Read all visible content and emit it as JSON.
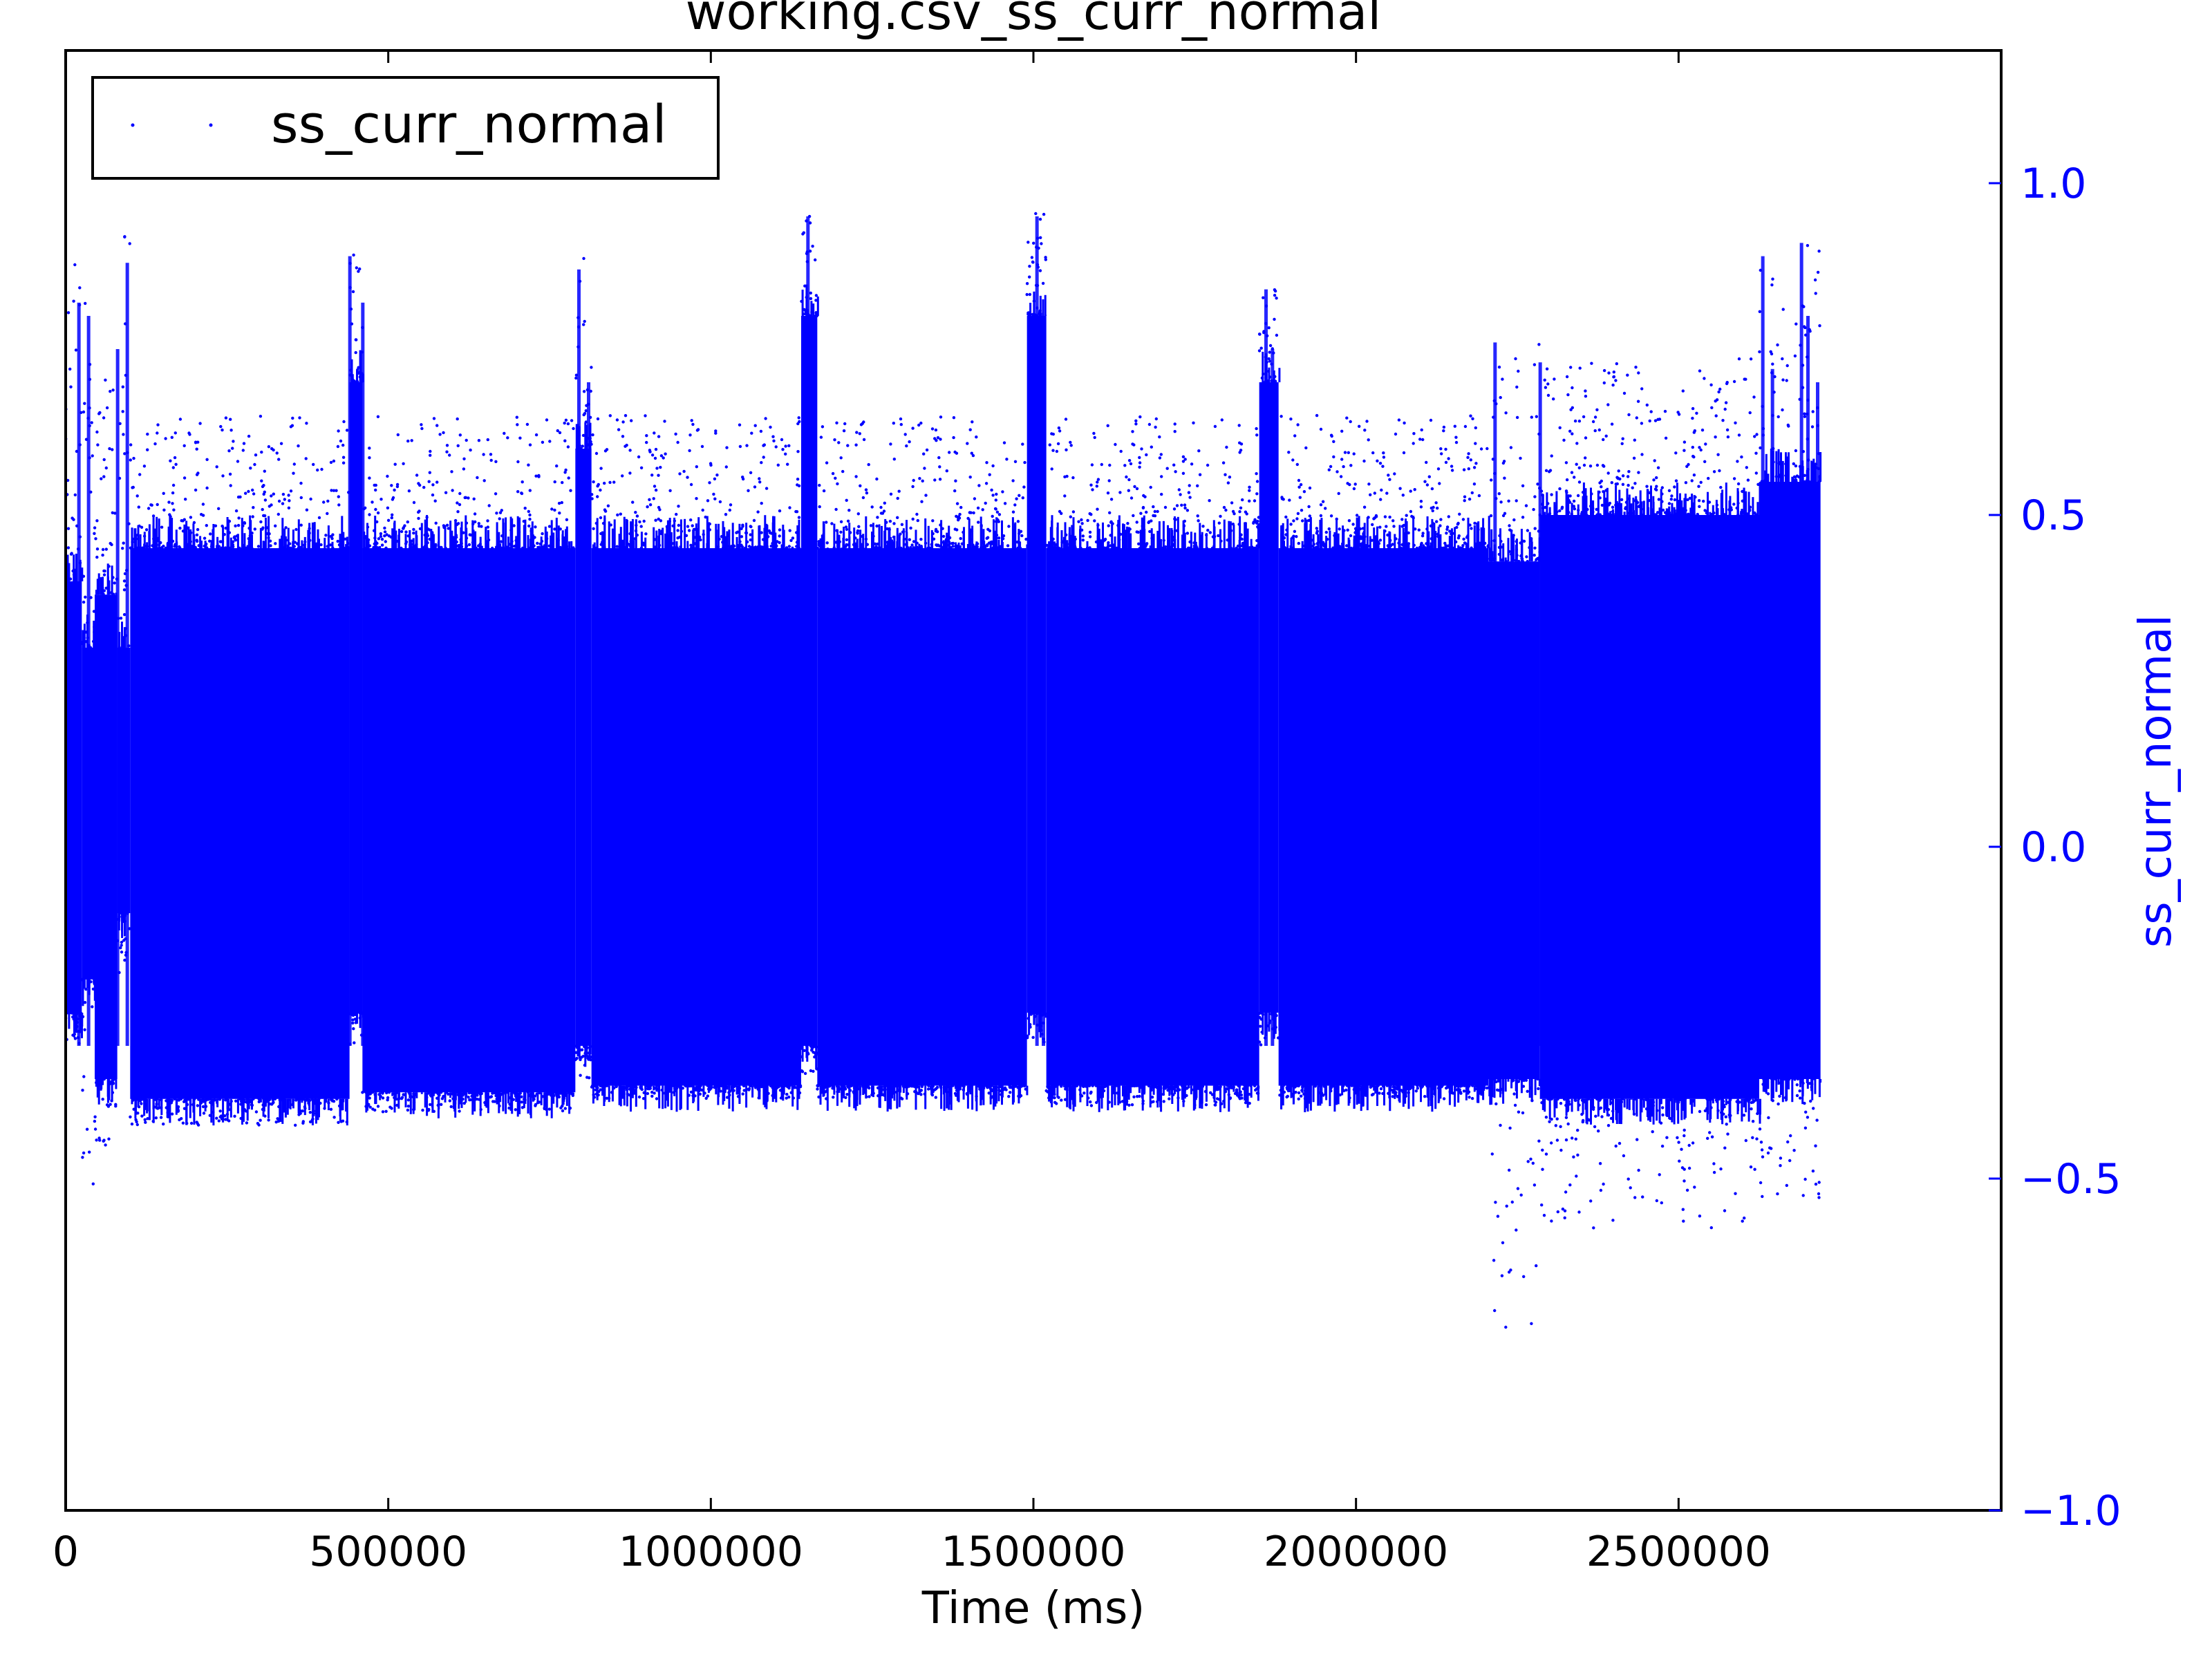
{
  "chart_data": {
    "type": "scatter",
    "title": "working.csv_ss_curr_normal",
    "xlabel": "Time (ms)",
    "ylabel": "ss_curr_normal",
    "xlim": [
      0,
      3000000
    ],
    "ylim": [
      -1.0,
      1.2
    ],
    "x_ticks": [
      0,
      500000,
      1000000,
      1500000,
      2000000,
      2500000
    ],
    "x_tick_labels": [
      "0",
      "500000",
      "1000000",
      "1500000",
      "2000000",
      "2500000"
    ],
    "y_ticks": [
      -1.0,
      -0.5,
      0.0,
      0.5,
      1.0
    ],
    "y_tick_labels": [
      "−1.0",
      "−0.5",
      "0.0",
      "0.5",
      "1.0"
    ],
    "y_axis_side": "right",
    "grid": false,
    "legend": {
      "placement": "upper-left",
      "entries": [
        "ss_curr_normal"
      ]
    },
    "colors": {
      "series": "#0000ff",
      "axis_label": "#0000ff",
      "frame": "#000000"
    },
    "series": [
      {
        "name": "ss_curr_normal",
        "marker": "small dots",
        "segments": [
          {
            "x": [
              0,
              25000
            ],
            "dense_range": [
              -0.25,
              0.4
            ],
            "extreme_range": [
              -0.3,
              0.88
            ]
          },
          {
            "x": [
              25000,
              45000
            ],
            "dense_range": [
              -0.2,
              0.3
            ],
            "extreme_range": [
              -0.52,
              0.82
            ]
          },
          {
            "x": [
              45000,
              80000
            ],
            "dense_range": [
              -0.35,
              0.38
            ],
            "extreme_range": [
              -0.45,
              0.75
            ]
          },
          {
            "x": [
              80000,
              100000
            ],
            "dense_range": [
              -0.1,
              0.3
            ],
            "extreme_range": [
              -0.2,
              0.97
            ]
          },
          {
            "x": [
              100000,
              440000
            ],
            "dense_range": [
              -0.38,
              0.45
            ],
            "extreme_range": [
              -0.42,
              0.65
            ]
          },
          {
            "x": [
              440000,
              460000
            ],
            "dense_range": [
              -0.25,
              0.7
            ],
            "extreme_range": [
              -0.3,
              0.9
            ]
          },
          {
            "x": [
              460000,
              790000
            ],
            "dense_range": [
              -0.37,
              0.45
            ],
            "extreme_range": [
              -0.4,
              0.65
            ]
          },
          {
            "x": [
              790000,
              815000
            ],
            "dense_range": [
              -0.3,
              0.6
            ],
            "extreme_range": [
              -0.35,
              0.96
            ]
          },
          {
            "x": [
              815000,
              1140000
            ],
            "dense_range": [
              -0.36,
              0.45
            ],
            "extreme_range": [
              -0.38,
              0.65
            ]
          },
          {
            "x": [
              1140000,
              1165000
            ],
            "dense_range": [
              -0.3,
              0.8
            ],
            "extreme_range": [
              -0.35,
              0.95
            ]
          },
          {
            "x": [
              1165000,
              1490000
            ],
            "dense_range": [
              -0.36,
              0.45
            ],
            "extreme_range": [
              -0.38,
              0.65
            ]
          },
          {
            "x": [
              1490000,
              1520000
            ],
            "dense_range": [
              -0.25,
              0.8
            ],
            "extreme_range": [
              -0.3,
              0.96
            ]
          },
          {
            "x": [
              1520000,
              1850000
            ],
            "dense_range": [
              -0.36,
              0.45
            ],
            "extreme_range": [
              -0.39,
              0.65
            ]
          },
          {
            "x": [
              1850000,
              1880000
            ],
            "dense_range": [
              -0.25,
              0.7
            ],
            "extreme_range": [
              -0.3,
              0.84
            ]
          },
          {
            "x": [
              1880000,
              2205000
            ],
            "dense_range": [
              -0.36,
              0.45
            ],
            "extreme_range": [
              -0.38,
              0.65
            ]
          },
          {
            "x": [
              2205000,
              2285000
            ],
            "dense_range": [
              -0.35,
              0.43
            ],
            "extreme_range": [
              -0.73,
              0.76
            ]
          },
          {
            "x": [
              2285000,
              2625000
            ],
            "dense_range": [
              -0.38,
              0.5
            ],
            "extreme_range": [
              -0.58,
              0.74
            ]
          },
          {
            "x": [
              2625000,
              2720000
            ],
            "dense_range": [
              -0.35,
              0.55
            ],
            "extreme_range": [
              -0.53,
              0.91
            ]
          }
        ]
      }
    ]
  }
}
